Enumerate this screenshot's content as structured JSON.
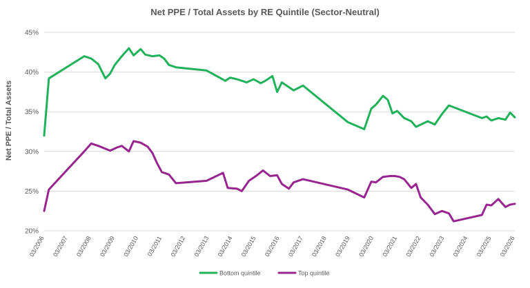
{
  "chart_data": {
    "type": "line",
    "title": "Net PPE / Total Assets by RE Quintile (Sector-Neutral)",
    "ylabel": "Net PPE / Total Assets",
    "xlabel": "",
    "ylim": [
      20,
      45
    ],
    "yticks": [
      "20%",
      "25%",
      "30%",
      "35%",
      "40%",
      "45%"
    ],
    "ytick_values": [
      20,
      25,
      30,
      35,
      40,
      45
    ],
    "xticks": [
      "03/2006",
      "03/2007",
      "03/2008",
      "03/2009",
      "03/2010",
      "03/2011",
      "03/2012",
      "03/2013",
      "03/2014",
      "03/2015",
      "03/2016",
      "03/2017",
      "03/2018",
      "03/2019",
      "03/2020",
      "03/2021",
      "03/2022",
      "03/2023",
      "03/2024",
      "03/2025",
      "03/2026"
    ],
    "xlim": [
      2006.0,
      2026.0
    ],
    "grid": true,
    "legend": "bottom",
    "series": [
      {
        "name": "Bottom quintile",
        "color": "#1fb25a",
        "x": [
          2006.0,
          2006.2,
          2007.7,
          2008.0,
          2008.3,
          2008.6,
          2008.8,
          2009.0,
          2009.3,
          2009.6,
          2009.8,
          2010.1,
          2010.3,
          2010.6,
          2010.9,
          2011.1,
          2011.3,
          2011.6,
          2012.9,
          2013.7,
          2013.9,
          2014.2,
          2014.6,
          2014.9,
          2015.2,
          2015.4,
          2015.7,
          2015.9,
          2016.1,
          2016.6,
          2017.0,
          2018.9,
          2019.6,
          2019.9,
          2020.1,
          2020.4,
          2020.6,
          2020.8,
          2021.0,
          2021.3,
          2021.6,
          2021.8,
          2022.3,
          2022.6,
          2022.9,
          2023.2,
          2024.6,
          2024.8,
          2025.0,
          2025.3,
          2025.6,
          2025.8,
          2026.0
        ],
        "values": [
          32.0,
          39.2,
          42.0,
          41.7,
          41.0,
          39.2,
          39.8,
          40.9,
          42.0,
          43.0,
          42.1,
          42.9,
          42.2,
          42.0,
          42.1,
          41.7,
          40.9,
          40.6,
          40.2,
          38.9,
          39.3,
          39.1,
          38.7,
          39.1,
          38.6,
          38.9,
          39.5,
          37.5,
          38.7,
          37.7,
          38.3,
          33.7,
          32.8,
          35.4,
          35.9,
          37.0,
          36.5,
          34.8,
          35.1,
          34.2,
          33.8,
          33.1,
          33.8,
          33.4,
          34.7,
          35.8,
          34.2,
          34.4,
          33.9,
          34.2,
          34.0,
          34.9,
          34.3
        ]
      },
      {
        "name": "Top quintile",
        "color": "#98258f",
        "x": [
          2006.0,
          2006.2,
          2007.7,
          2008.0,
          2008.3,
          2008.8,
          2009.1,
          2009.3,
          2009.6,
          2009.8,
          2010.1,
          2010.4,
          2010.6,
          2010.8,
          2011.0,
          2011.3,
          2011.6,
          2012.9,
          2013.6,
          2013.8,
          2014.2,
          2014.4,
          2014.7,
          2015.0,
          2015.3,
          2015.6,
          2015.9,
          2016.1,
          2016.4,
          2016.6,
          2017.0,
          2018.9,
          2019.6,
          2019.9,
          2020.1,
          2020.4,
          2020.7,
          2020.9,
          2021.1,
          2021.3,
          2021.6,
          2021.8,
          2022.0,
          2022.3,
          2022.6,
          2022.9,
          2023.2,
          2023.4,
          2024.6,
          2024.8,
          2025.0,
          2025.3,
          2025.6,
          2025.8,
          2026.0
        ],
        "values": [
          22.5,
          25.2,
          30.0,
          31.0,
          30.7,
          30.1,
          30.5,
          30.7,
          30.0,
          31.3,
          31.1,
          30.6,
          29.8,
          28.5,
          27.4,
          27.1,
          26.0,
          26.3,
          27.3,
          25.4,
          25.3,
          25.0,
          26.3,
          26.9,
          27.6,
          26.9,
          27.0,
          25.9,
          25.3,
          26.1,
          26.5,
          25.2,
          24.2,
          26.2,
          26.1,
          26.8,
          26.9,
          26.9,
          26.8,
          26.5,
          25.4,
          25.9,
          24.2,
          23.3,
          22.1,
          22.5,
          22.2,
          21.2,
          22.0,
          23.3,
          23.2,
          24.0,
          23.0,
          23.3,
          23.4
        ]
      }
    ]
  }
}
